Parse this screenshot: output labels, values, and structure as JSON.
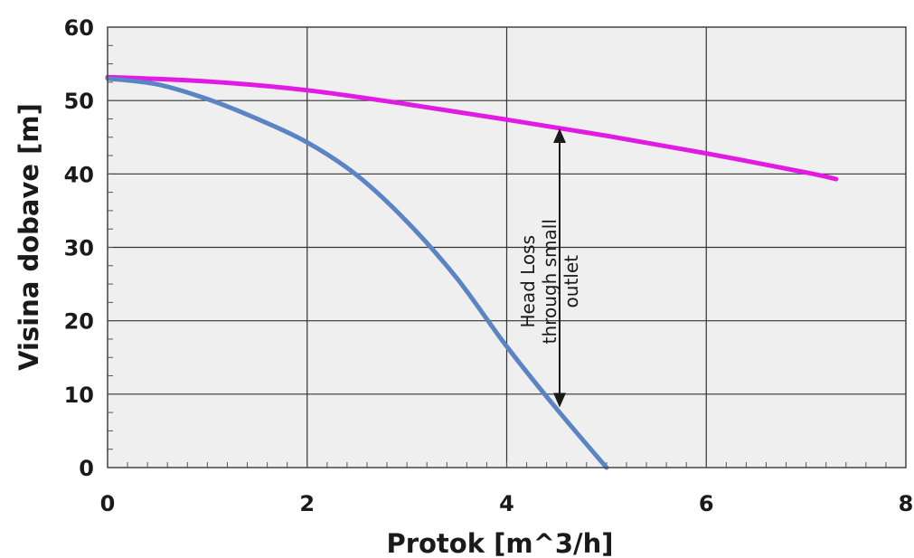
{
  "chart_data": {
    "type": "line",
    "title": "",
    "xlabel": "Protok [m^3/h]",
    "ylabel": "Visina dobave [m]",
    "xlim": [
      0,
      8
    ],
    "ylim": [
      0,
      60
    ],
    "xticks": [
      0,
      2,
      4,
      6,
      8
    ],
    "yticks": [
      0,
      10,
      20,
      30,
      40,
      50,
      60
    ],
    "grid": true,
    "background": "#efefef",
    "series": [
      {
        "color": "#e11be4",
        "x": [
          0,
          1,
          2,
          3,
          4,
          5,
          6,
          7,
          7.3
        ],
        "y": [
          53.2,
          52.6,
          51.4,
          49.5,
          47.4,
          45.2,
          42.8,
          40.2,
          39.3
        ]
      },
      {
        "color": "#5b84c4",
        "x": [
          0,
          0.5,
          1,
          1.5,
          2,
          2.5,
          3,
          3.5,
          4,
          4.5,
          5
        ],
        "y": [
          53,
          52.2,
          50.2,
          47.5,
          44.3,
          39.8,
          33.5,
          25.8,
          16.5,
          8,
          0
        ]
      }
    ],
    "annotation": {
      "lines": [
        "Head Loss",
        "through small",
        "outlet"
      ],
      "x": 4.53,
      "y_top": 46.2,
      "y_bottom": 8.2
    }
  }
}
